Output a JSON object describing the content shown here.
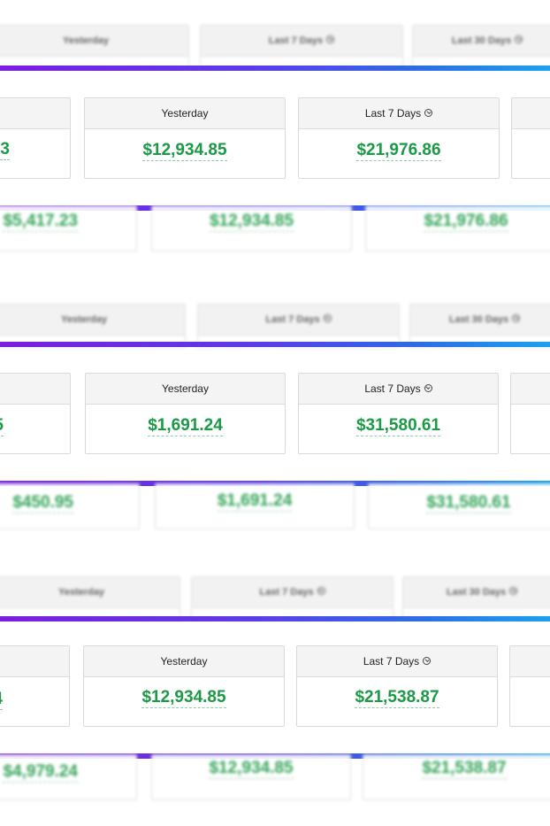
{
  "colors": {
    "accent_green": "#1b9a45",
    "divider_gradient": [
      "#7a1fe0",
      "#2f6ae8",
      "#1aa2ee"
    ]
  },
  "labels": {
    "yesterday": "Yesterday",
    "last7": "Last 7 Days",
    "last30": "Last 30 Days"
  },
  "groups": [
    {
      "left_value": "3",
      "yesterday_value": "$12,934.85",
      "last7_value": "$21,976.86",
      "lower_left_value": "$5,417.23",
      "lower_yesterday_value": "$12,934.85",
      "lower_last7_value": "$21,976.86"
    },
    {
      "left_value": "5",
      "yesterday_value": "$1,691.24",
      "last7_value": "$31,580.61",
      "lower_left_value": "$450.95",
      "lower_yesterday_value": "$1,691.24",
      "lower_last7_value": "$31,580.61"
    },
    {
      "left_value": "4",
      "yesterday_value": "$12,934.85",
      "last7_value": "$21,538.87",
      "lower_left_value": "$4,979.24",
      "lower_yesterday_value": "$12,934.85",
      "lower_last7_value": "$21,538.87"
    }
  ]
}
